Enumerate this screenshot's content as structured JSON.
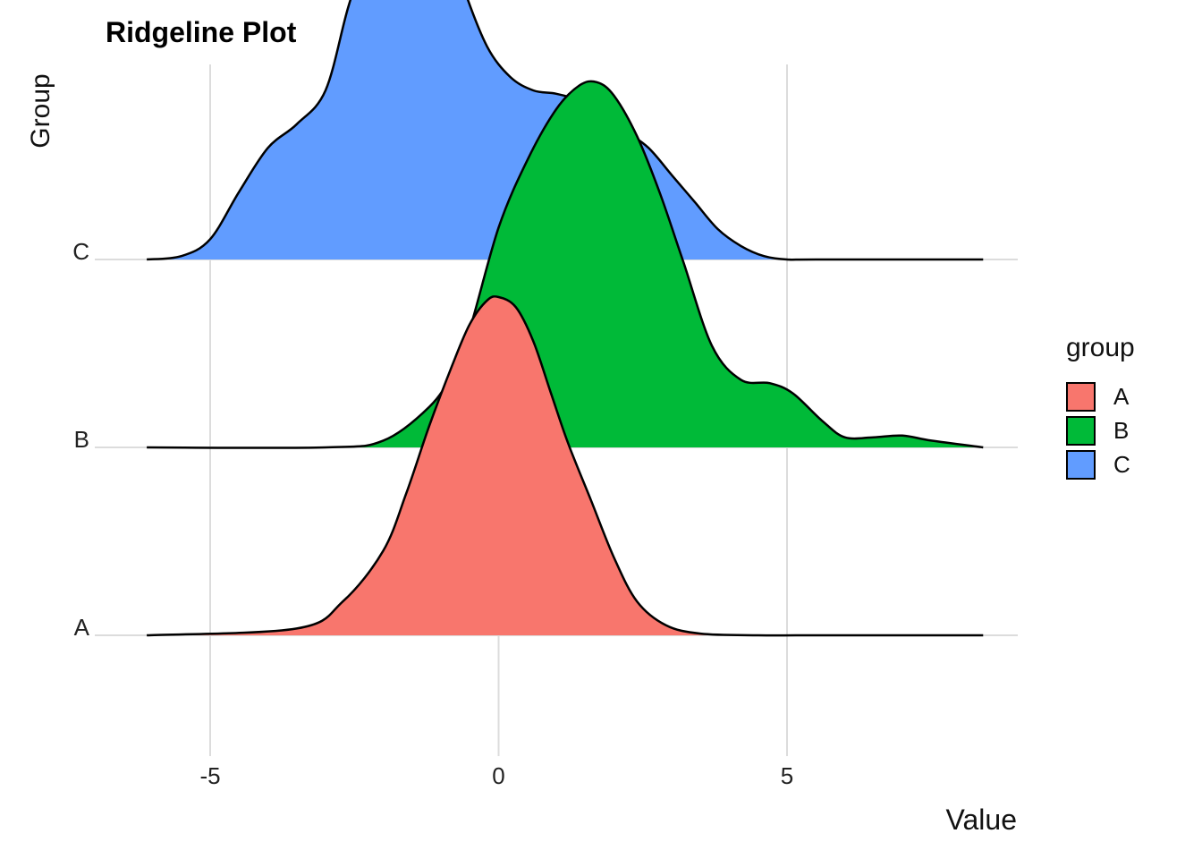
{
  "chart_data": {
    "type": "area",
    "title": "Ridgeline Plot",
    "xlabel": "Value",
    "ylabel": "Group",
    "xlim": [
      -7,
      9
    ],
    "x_ticks": [
      -5,
      0,
      5
    ],
    "x_tick_labels": [
      "-5",
      "0",
      "5"
    ],
    "categories": [
      "A",
      "B",
      "C"
    ],
    "grid": true,
    "legend": {
      "title": "group",
      "position": "right"
    },
    "series": [
      {
        "name": "A",
        "color": "#F8766D",
        "x": [
          -6.1,
          -3.5,
          -2.7,
          -2.0,
          -1.6,
          -1.2,
          -0.8,
          -0.5,
          -0.2,
          0.0,
          0.3,
          0.6,
          0.9,
          1.2,
          1.6,
          2.0,
          2.4,
          2.9,
          3.5,
          4.5,
          5.5,
          8.4
        ],
        "y": [
          0.0,
          0.02,
          0.1,
          0.25,
          0.42,
          0.62,
          0.8,
          0.92,
          0.99,
          1.0,
          0.97,
          0.87,
          0.72,
          0.57,
          0.4,
          0.23,
          0.1,
          0.03,
          0.005,
          0.0,
          0.0,
          0.0
        ]
      },
      {
        "name": "B",
        "color": "#00BA38",
        "x": [
          -6.1,
          -3.0,
          -2.0,
          -1.2,
          -0.8,
          -0.5,
          0.0,
          0.5,
          1.0,
          1.4,
          1.7,
          2.0,
          2.4,
          2.8,
          3.2,
          3.7,
          4.2,
          4.7,
          5.1,
          5.6,
          6.0,
          6.5,
          7.0,
          7.5,
          8.4
        ],
        "y": [
          0.0,
          0.0,
          0.02,
          0.12,
          0.22,
          0.35,
          0.65,
          0.85,
          1.0,
          1.07,
          1.08,
          1.04,
          0.92,
          0.75,
          0.55,
          0.3,
          0.2,
          0.19,
          0.16,
          0.08,
          0.03,
          0.03,
          0.035,
          0.02,
          0.0
        ]
      },
      {
        "name": "C",
        "color": "#619CFF",
        "x": [
          -6.1,
          -5.5,
          -5.0,
          -4.5,
          -4.0,
          -3.5,
          -3.0,
          -2.6,
          -2.2,
          -1.9,
          -1.6,
          -1.2,
          -0.9,
          -0.6,
          -0.2,
          0.2,
          0.6,
          1.0,
          1.4,
          1.8,
          2.2,
          2.6,
          3.0,
          3.4,
          3.8,
          4.2,
          4.6,
          5.0,
          5.5,
          8.4
        ],
        "y": [
          0.0,
          0.01,
          0.06,
          0.2,
          0.33,
          0.4,
          0.5,
          0.75,
          0.95,
          1.03,
          1.04,
          1.04,
          0.97,
          0.8,
          0.63,
          0.54,
          0.5,
          0.49,
          0.47,
          0.43,
          0.38,
          0.33,
          0.25,
          0.17,
          0.09,
          0.04,
          0.01,
          0.0,
          0.0,
          0.0
        ]
      }
    ]
  }
}
